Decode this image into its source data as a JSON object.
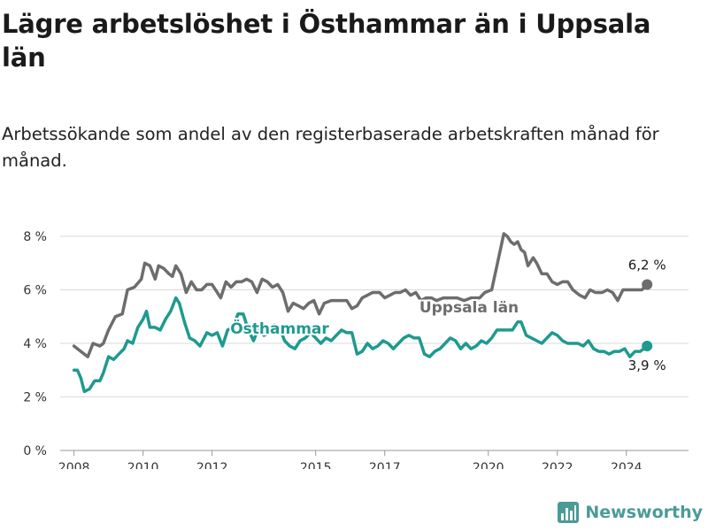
{
  "title": "Lägre arbetslöshet i Östhammar än i Uppsala län",
  "subtitle": "Arbetssökande som andel av den registerbaserade arbetskraften månad för månad.",
  "brand": {
    "name": "Newsworthy",
    "color": "#4a9b97",
    "icon": "bar-chart-logo-icon"
  },
  "chart_data": {
    "type": "line",
    "title": "Lägre arbetslöshet i Östhammar än i Uppsala län",
    "subtitle": "Arbetssökande som andel av den registerbaserade arbetskraften månad för månad.",
    "xlabel": "",
    "ylabel": "",
    "ylim": [
      0,
      8
    ],
    "xlim": [
      2007.6,
      2025.8
    ],
    "grid": true,
    "y_ticks": [
      0,
      2,
      4,
      6,
      8
    ],
    "y_tick_labels": [
      "0 %",
      "2 %",
      "4 %",
      "6 %",
      "8 %"
    ],
    "x_ticks": [
      2008,
      2010,
      2012,
      2015,
      2017,
      2020,
      2022,
      2024
    ],
    "x_tick_labels": [
      "2008",
      "2010",
      "2012",
      "2015",
      "2017",
      "2020",
      "2022",
      "2024"
    ],
    "series": [
      {
        "name": "Uppsala län",
        "color": "#6d6d6d",
        "end_label": "6,2 %",
        "points": [
          [
            2008.0,
            3.9
          ],
          [
            2008.2,
            3.7
          ],
          [
            2008.4,
            3.5
          ],
          [
            2008.55,
            4.0
          ],
          [
            2008.75,
            3.9
          ],
          [
            2008.85,
            4.0
          ],
          [
            2009.0,
            4.5
          ],
          [
            2009.2,
            5.0
          ],
          [
            2009.4,
            5.1
          ],
          [
            2009.55,
            6.0
          ],
          [
            2009.75,
            6.1
          ],
          [
            2009.95,
            6.4
          ],
          [
            2010.05,
            7.0
          ],
          [
            2010.2,
            6.9
          ],
          [
            2010.35,
            6.4
          ],
          [
            2010.45,
            6.9
          ],
          [
            2010.6,
            6.8
          ],
          [
            2010.75,
            6.6
          ],
          [
            2010.85,
            6.5
          ],
          [
            2010.95,
            6.9
          ],
          [
            2011.1,
            6.6
          ],
          [
            2011.25,
            5.9
          ],
          [
            2011.4,
            6.3
          ],
          [
            2011.55,
            6.0
          ],
          [
            2011.7,
            6.0
          ],
          [
            2011.85,
            6.2
          ],
          [
            2012.0,
            6.2
          ],
          [
            2012.15,
            5.9
          ],
          [
            2012.25,
            5.7
          ],
          [
            2012.4,
            6.3
          ],
          [
            2012.55,
            6.1
          ],
          [
            2012.7,
            6.3
          ],
          [
            2012.85,
            6.3
          ],
          [
            2013.0,
            6.4
          ],
          [
            2013.15,
            6.3
          ],
          [
            2013.3,
            5.9
          ],
          [
            2013.45,
            6.4
          ],
          [
            2013.6,
            6.3
          ],
          [
            2013.75,
            6.1
          ],
          [
            2013.9,
            6.2
          ],
          [
            2014.05,
            5.9
          ],
          [
            2014.2,
            5.2
          ],
          [
            2014.35,
            5.5
          ],
          [
            2014.5,
            5.4
          ],
          [
            2014.65,
            5.3
          ],
          [
            2014.8,
            5.5
          ],
          [
            2014.95,
            5.6
          ],
          [
            2015.1,
            5.1
          ],
          [
            2015.25,
            5.5
          ],
          [
            2015.45,
            5.6
          ],
          [
            2015.6,
            5.6
          ],
          [
            2015.75,
            5.6
          ],
          [
            2015.9,
            5.6
          ],
          [
            2016.05,
            5.3
          ],
          [
            2016.2,
            5.4
          ],
          [
            2016.35,
            5.7
          ],
          [
            2016.5,
            5.8
          ],
          [
            2016.65,
            5.9
          ],
          [
            2016.85,
            5.9
          ],
          [
            2017.0,
            5.7
          ],
          [
            2017.15,
            5.8
          ],
          [
            2017.3,
            5.9
          ],
          [
            2017.45,
            5.9
          ],
          [
            2017.6,
            6.0
          ],
          [
            2017.75,
            5.8
          ],
          [
            2017.9,
            5.9
          ],
          [
            2018.05,
            5.6
          ],
          [
            2018.2,
            5.7
          ],
          [
            2018.35,
            5.7
          ],
          [
            2018.5,
            5.6
          ],
          [
            2018.7,
            5.7
          ],
          [
            2018.9,
            5.7
          ],
          [
            2019.1,
            5.7
          ],
          [
            2019.3,
            5.6
          ],
          [
            2019.5,
            5.7
          ],
          [
            2019.75,
            5.7
          ],
          [
            2019.9,
            5.9
          ],
          [
            2020.1,
            6.0
          ],
          [
            2020.25,
            6.9
          ],
          [
            2020.35,
            7.5
          ],
          [
            2020.45,
            8.1
          ],
          [
            2020.55,
            8.0
          ],
          [
            2020.65,
            7.8
          ],
          [
            2020.75,
            7.7
          ],
          [
            2020.85,
            7.8
          ],
          [
            2020.95,
            7.5
          ],
          [
            2021.05,
            7.4
          ],
          [
            2021.15,
            6.9
          ],
          [
            2021.3,
            7.2
          ],
          [
            2021.4,
            7.0
          ],
          [
            2021.55,
            6.6
          ],
          [
            2021.7,
            6.6
          ],
          [
            2021.85,
            6.3
          ],
          [
            2022.0,
            6.2
          ],
          [
            2022.15,
            6.3
          ],
          [
            2022.3,
            6.3
          ],
          [
            2022.45,
            6.0
          ],
          [
            2022.65,
            5.8
          ],
          [
            2022.8,
            5.7
          ],
          [
            2022.95,
            6.0
          ],
          [
            2023.1,
            5.9
          ],
          [
            2023.3,
            5.9
          ],
          [
            2023.45,
            6.0
          ],
          [
            2023.6,
            5.9
          ],
          [
            2023.75,
            5.6
          ],
          [
            2023.9,
            6.0
          ],
          [
            2024.1,
            6.0
          ],
          [
            2024.3,
            6.0
          ],
          [
            2024.45,
            6.0
          ],
          [
            2024.6,
            6.2
          ]
        ]
      },
      {
        "name": "Östhammar",
        "color": "#1e9a8f",
        "end_label": "3,9 %",
        "points": [
          [
            2008.0,
            3.0
          ],
          [
            2008.1,
            3.0
          ],
          [
            2008.2,
            2.7
          ],
          [
            2008.3,
            2.2
          ],
          [
            2008.45,
            2.3
          ],
          [
            2008.6,
            2.6
          ],
          [
            2008.75,
            2.6
          ],
          [
            2008.85,
            2.9
          ],
          [
            2009.0,
            3.5
          ],
          [
            2009.15,
            3.4
          ],
          [
            2009.3,
            3.6
          ],
          [
            2009.45,
            3.8
          ],
          [
            2009.55,
            4.1
          ],
          [
            2009.7,
            4.0
          ],
          [
            2009.85,
            4.6
          ],
          [
            2010.0,
            4.9
          ],
          [
            2010.1,
            5.2
          ],
          [
            2010.2,
            4.6
          ],
          [
            2010.35,
            4.6
          ],
          [
            2010.5,
            4.5
          ],
          [
            2010.65,
            4.9
          ],
          [
            2010.8,
            5.2
          ],
          [
            2010.95,
            5.7
          ],
          [
            2011.05,
            5.5
          ],
          [
            2011.2,
            4.8
          ],
          [
            2011.35,
            4.2
          ],
          [
            2011.5,
            4.1
          ],
          [
            2011.65,
            3.9
          ],
          [
            2011.85,
            4.4
          ],
          [
            2012.0,
            4.3
          ],
          [
            2012.15,
            4.4
          ],
          [
            2012.3,
            3.9
          ],
          [
            2012.45,
            4.5
          ],
          [
            2012.6,
            4.6
          ],
          [
            2012.75,
            5.1
          ],
          [
            2012.9,
            5.1
          ],
          [
            2013.05,
            4.5
          ],
          [
            2013.2,
            4.1
          ],
          [
            2013.35,
            4.6
          ],
          [
            2013.5,
            4.3
          ],
          [
            2013.65,
            4.4
          ],
          [
            2013.8,
            4.7
          ],
          [
            2013.95,
            4.6
          ],
          [
            2014.1,
            4.1
          ],
          [
            2014.25,
            3.9
          ],
          [
            2014.4,
            3.8
          ],
          [
            2014.55,
            4.1
          ],
          [
            2014.7,
            4.2
          ],
          [
            2014.85,
            4.4
          ],
          [
            2015.0,
            4.2
          ],
          [
            2015.15,
            4.0
          ],
          [
            2015.3,
            4.2
          ],
          [
            2015.45,
            4.1
          ],
          [
            2015.6,
            4.3
          ],
          [
            2015.75,
            4.5
          ],
          [
            2015.9,
            4.4
          ],
          [
            2016.05,
            4.4
          ],
          [
            2016.2,
            3.6
          ],
          [
            2016.35,
            3.7
          ],
          [
            2016.5,
            4.0
          ],
          [
            2016.65,
            3.8
          ],
          [
            2016.8,
            3.9
          ],
          [
            2016.95,
            4.1
          ],
          [
            2017.1,
            4.0
          ],
          [
            2017.25,
            3.8
          ],
          [
            2017.4,
            4.0
          ],
          [
            2017.55,
            4.2
          ],
          [
            2017.7,
            4.3
          ],
          [
            2017.85,
            4.2
          ],
          [
            2018.0,
            4.2
          ],
          [
            2018.15,
            3.6
          ],
          [
            2018.3,
            3.5
          ],
          [
            2018.45,
            3.7
          ],
          [
            2018.6,
            3.8
          ],
          [
            2018.75,
            4.0
          ],
          [
            2018.9,
            4.2
          ],
          [
            2019.05,
            4.1
          ],
          [
            2019.2,
            3.8
          ],
          [
            2019.35,
            4.0
          ],
          [
            2019.5,
            3.8
          ],
          [
            2019.65,
            3.9
          ],
          [
            2019.8,
            4.1
          ],
          [
            2019.95,
            4.0
          ],
          [
            2020.1,
            4.2
          ],
          [
            2020.25,
            4.5
          ],
          [
            2020.4,
            4.5
          ],
          [
            2020.55,
            4.5
          ],
          [
            2020.7,
            4.5
          ],
          [
            2020.85,
            4.8
          ],
          [
            2020.95,
            4.8
          ],
          [
            2021.1,
            4.3
          ],
          [
            2021.25,
            4.2
          ],
          [
            2021.4,
            4.1
          ],
          [
            2021.55,
            4.0
          ],
          [
            2021.7,
            4.2
          ],
          [
            2021.85,
            4.4
          ],
          [
            2022.0,
            4.3
          ],
          [
            2022.15,
            4.1
          ],
          [
            2022.3,
            4.0
          ],
          [
            2022.45,
            4.0
          ],
          [
            2022.6,
            4.0
          ],
          [
            2022.75,
            3.9
          ],
          [
            2022.9,
            4.1
          ],
          [
            2023.05,
            3.8
          ],
          [
            2023.2,
            3.7
          ],
          [
            2023.35,
            3.7
          ],
          [
            2023.5,
            3.6
          ],
          [
            2023.65,
            3.7
          ],
          [
            2023.8,
            3.7
          ],
          [
            2023.95,
            3.8
          ],
          [
            2024.1,
            3.5
          ],
          [
            2024.25,
            3.7
          ],
          [
            2024.4,
            3.7
          ],
          [
            2024.5,
            3.8
          ],
          [
            2024.6,
            3.9
          ]
        ]
      }
    ]
  }
}
